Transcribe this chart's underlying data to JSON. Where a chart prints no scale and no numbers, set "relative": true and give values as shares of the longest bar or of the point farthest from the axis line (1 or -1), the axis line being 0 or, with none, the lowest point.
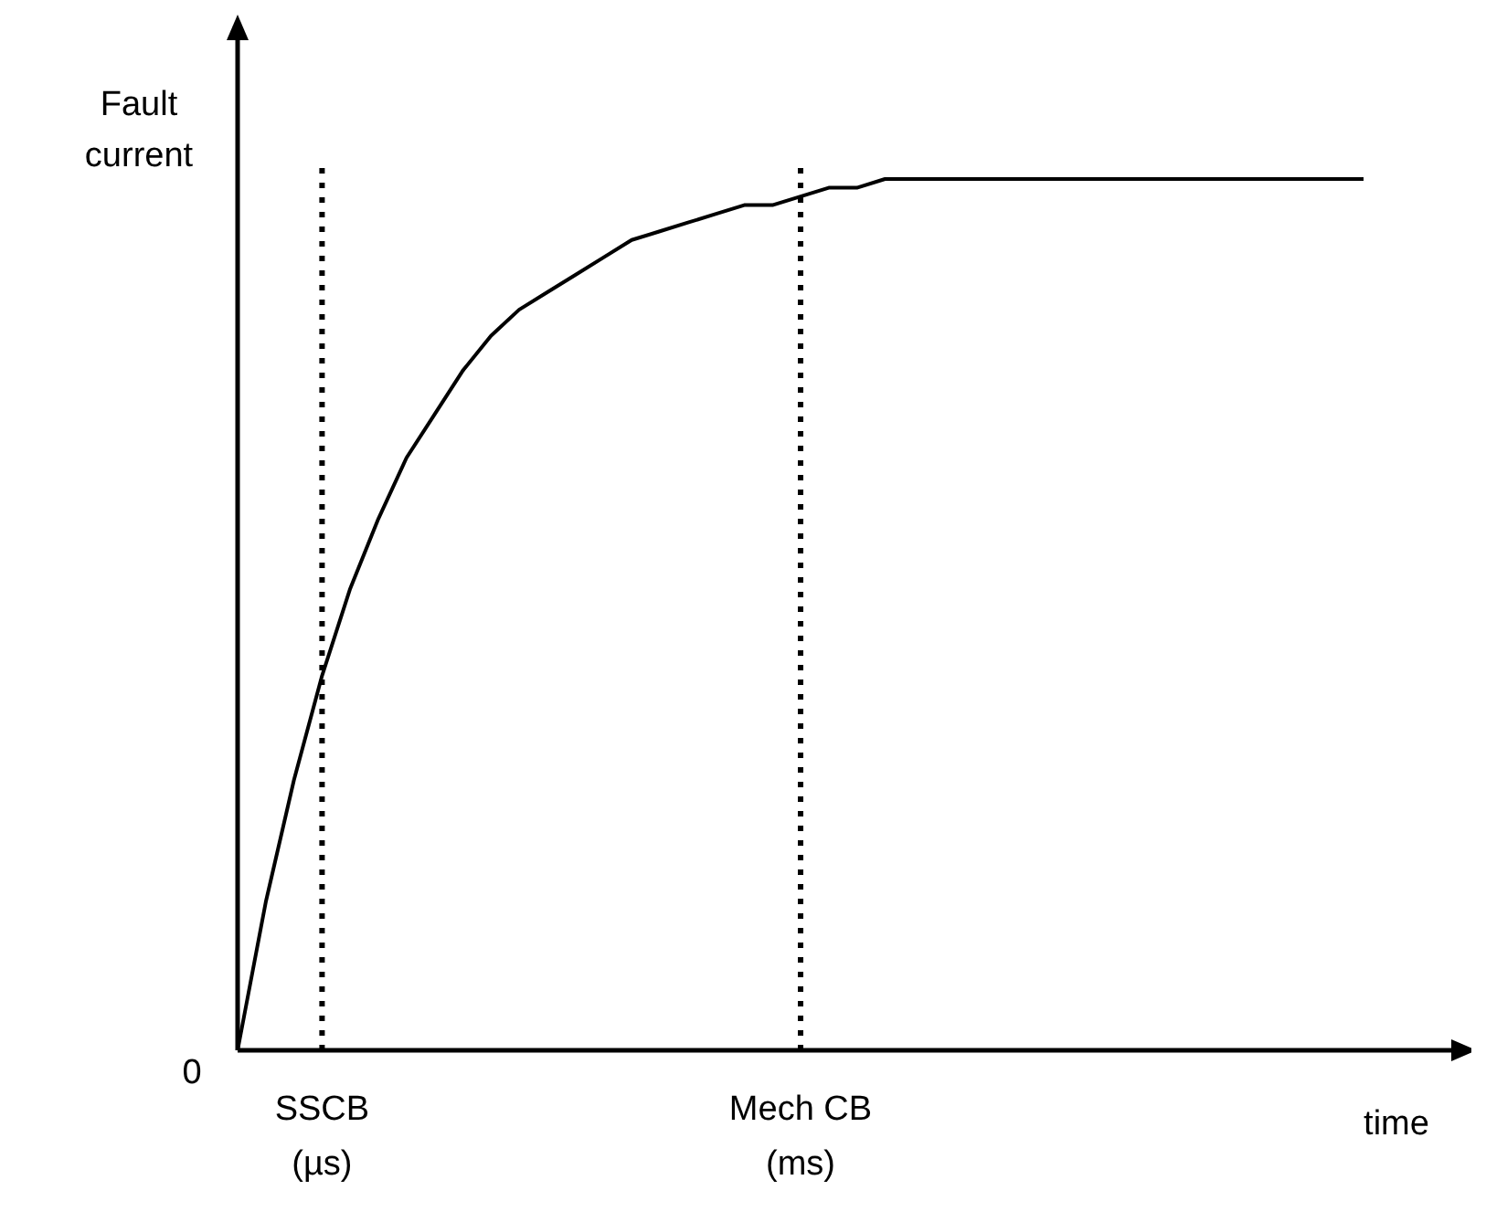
{
  "chart_data": {
    "type": "line",
    "relative": true,
    "xlabel": "time",
    "ylabel": "Fault current",
    "categories": [
      null,
      null,
      null,
      "SSCB\n(µs)",
      null,
      null,
      null,
      null,
      null,
      null,
      null,
      null,
      null,
      null,
      null,
      null,
      null,
      null,
      null,
      null,
      "Mech CB\n(ms)",
      null,
      null,
      null,
      null,
      null,
      null,
      null,
      null,
      null,
      null,
      null,
      null,
      null,
      null,
      null,
      null,
      null,
      null,
      null,
      null
    ],
    "series": [
      {
        "color": "#000000",
        "values": [
          0,
          0.17,
          0.31,
          0.43,
          0.53,
          0.61,
          0.68,
          0.73,
          0.78,
          0.82,
          0.85,
          0.87,
          0.89,
          0.91,
          0.93,
          0.94,
          0.95,
          0.96,
          0.97,
          0.97,
          0.98,
          0.99,
          0.99,
          1,
          1,
          1,
          1,
          1,
          1,
          1,
          1,
          1,
          1,
          1,
          1,
          1,
          1,
          1,
          1,
          1,
          1
        ]
      }
    ],
    "ref_lines": [
      {
        "axis": "x",
        "value": "SSCB\n(µs)",
        "color": "#000000",
        "line_style": "dotted"
      },
      {
        "axis": "x",
        "value": "Mech CB\n(ms)",
        "color": "#000000",
        "line_style": "dotted"
      }
    ],
    "annotations": [
      "0"
    ],
    "marker": "none",
    "line_style": "solid"
  }
}
